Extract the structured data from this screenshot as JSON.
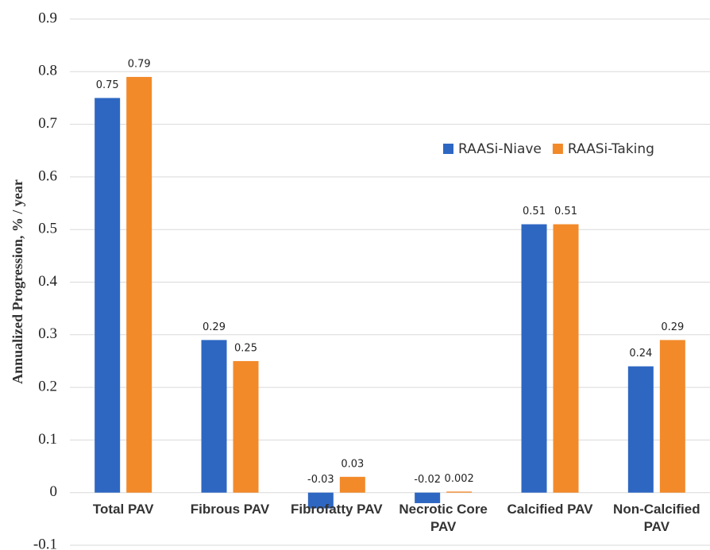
{
  "chart_data": {
    "type": "bar",
    "y_label": "Annualized Progression, % / year",
    "categories": [
      "Total PAV",
      "Fibrous PAV",
      "Fibrofatty PAV",
      "Necrotic Core PAV",
      "Calcified PAV",
      "Non-Calcified PAV"
    ],
    "series": [
      {
        "name": "RAASi-Niave",
        "color": "#2e67c2",
        "values": [
          0.75,
          0.29,
          -0.03,
          -0.02,
          0.51,
          0.24
        ]
      },
      {
        "name": "RAASi-Taking",
        "color": "#f28a2a",
        "values": [
          0.79,
          0.25,
          0.03,
          0.002,
          0.51,
          0.29
        ]
      }
    ],
    "ylim": [
      -0.1,
      0.9
    ],
    "yticks": [
      -0.1,
      0,
      0.1,
      0.2,
      0.3,
      0.4,
      0.5,
      0.6,
      0.7,
      0.8,
      0.9
    ],
    "grid": true,
    "legend": "upper right"
  }
}
